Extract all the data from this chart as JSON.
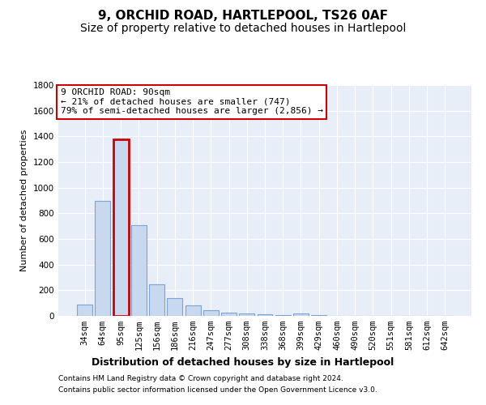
{
  "title1": "9, ORCHID ROAD, HARTLEPOOL, TS26 0AF",
  "title2": "Size of property relative to detached houses in Hartlepool",
  "xlabel": "Distribution of detached houses by size in Hartlepool",
  "ylabel": "Number of detached properties",
  "footer1": "Contains HM Land Registry data © Crown copyright and database right 2024.",
  "footer2": "Contains public sector information licensed under the Open Government Licence v3.0.",
  "categories": [
    "34sqm",
    "64sqm",
    "95sqm",
    "125sqm",
    "156sqm",
    "186sqm",
    "216sqm",
    "247sqm",
    "277sqm",
    "308sqm",
    "338sqm",
    "368sqm",
    "399sqm",
    "429sqm",
    "460sqm",
    "490sqm",
    "520sqm",
    "551sqm",
    "581sqm",
    "612sqm",
    "642sqm"
  ],
  "values": [
    90,
    900,
    1380,
    710,
    245,
    140,
    80,
    45,
    28,
    20,
    15,
    5,
    20,
    5,
    2,
    1,
    0,
    0,
    0,
    0,
    0
  ],
  "bar_color": "#c8d8ef",
  "bar_edge_color": "#7ba3d4",
  "highlight_bar_index": 2,
  "highlight_bar_edge_color": "#cc0000",
  "annotation_box_text": "9 ORCHID ROAD: 90sqm\n← 21% of detached houses are smaller (747)\n79% of semi-detached houses are larger (2,856) →",
  "ylim": [
    0,
    1800
  ],
  "yticks": [
    0,
    200,
    400,
    600,
    800,
    1000,
    1200,
    1400,
    1600,
    1800
  ],
  "bg_color": "#ffffff",
  "plot_bg_color": "#e8eef8",
  "grid_color": "#ffffff",
  "title_fontsize": 11,
  "subtitle_fontsize": 10,
  "ylabel_fontsize": 8,
  "tick_fontsize": 7.5,
  "xlabel_fontsize": 9,
  "footer_fontsize": 6.5,
  "ann_fontsize": 8
}
